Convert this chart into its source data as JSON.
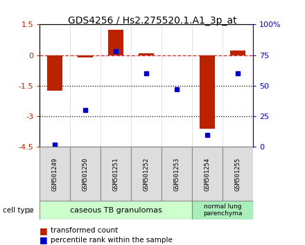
{
  "title": "GDS4256 / Hs2.275520.1.A1_3p_at",
  "categories": [
    "GSM501249",
    "GSM501250",
    "GSM501251",
    "GSM501252",
    "GSM501253",
    "GSM501254",
    "GSM501255"
  ],
  "red_values": [
    -1.75,
    -0.12,
    1.25,
    0.08,
    -0.02,
    -3.6,
    0.22
  ],
  "blue_values_pct": [
    2,
    30,
    78,
    60,
    47,
    10,
    60
  ],
  "ylim_left": [
    -4.5,
    1.5
  ],
  "yticks_left": [
    1.5,
    0,
    -1.5,
    -3,
    -4.5
  ],
  "ytick_labels_left": [
    "1.5",
    "0",
    "-1.5",
    "-3",
    "-4.5"
  ],
  "ylim_right": [
    0,
    100
  ],
  "yticks_right": [
    0,
    25,
    50,
    75,
    100
  ],
  "ytick_labels_right": [
    "0",
    "25",
    "50",
    "75",
    "100%"
  ],
  "dotted_lines": [
    -1.5,
    -3.0
  ],
  "red_color": "#BB2200",
  "blue_color": "#0000CC",
  "dashed_line_color": "#CC3333",
  "group1_label": "caseous TB granulomas",
  "group1_indices": [
    0,
    1,
    2,
    3,
    4
  ],
  "group2_label": "normal lung\nparenchyma",
  "group2_indices": [
    5,
    6
  ],
  "group1_color": "#CCFFCC",
  "group2_color": "#AAEEBB",
  "cell_type_label": "cell type",
  "legend_red": "transformed count",
  "legend_blue": "percentile rank within the sample",
  "bar_width": 0.5
}
